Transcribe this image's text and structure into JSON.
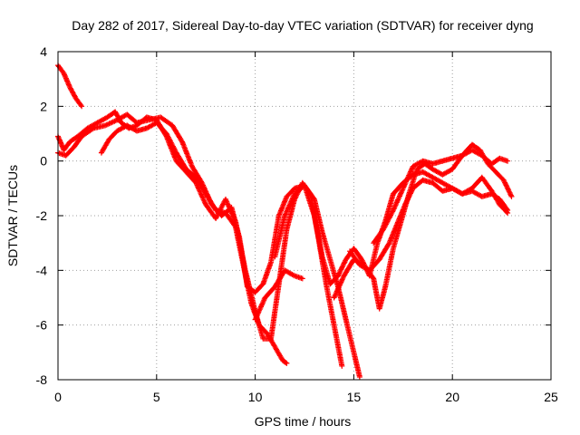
{
  "chart_data": {
    "type": "scatter",
    "title": "Day 282 of 2017, Sidereal Day-to-day VTEC variation (SDTVAR) for receiver dyng",
    "xlabel": "GPS time / hours",
    "ylabel": "SDTVAR / TECUs",
    "xlim": [
      0,
      25
    ],
    "ylim": [
      -8,
      4
    ],
    "xticks": [
      0,
      5,
      10,
      15,
      20,
      25
    ],
    "yticks": [
      -8,
      -6,
      -4,
      -2,
      0,
      2,
      4
    ],
    "grid": true,
    "marker": "plus",
    "color": "#ff0000",
    "series": [
      {
        "points": [
          [
            0.0,
            3.5
          ],
          [
            0.3,
            3.2
          ],
          [
            0.6,
            2.7
          ],
          [
            0.9,
            2.3
          ],
          [
            1.2,
            2.0
          ]
        ]
      },
      {
        "points": [
          [
            0.0,
            0.9
          ],
          [
            0.3,
            0.4
          ],
          [
            0.6,
            0.7
          ],
          [
            1.0,
            0.9
          ],
          [
            1.5,
            1.2
          ],
          [
            2.0,
            1.4
          ],
          [
            2.5,
            1.6
          ],
          [
            2.9,
            1.8
          ],
          [
            3.2,
            1.4
          ],
          [
            3.6,
            1.2
          ],
          [
            4.0,
            1.3
          ],
          [
            4.5,
            1.6
          ],
          [
            5.0,
            1.5
          ],
          [
            5.5,
            0.9
          ],
          [
            6.0,
            0.0
          ],
          [
            6.5,
            -0.4
          ],
          [
            7.0,
            -0.8
          ],
          [
            7.5,
            -1.6
          ],
          [
            8.0,
            -2.1
          ],
          [
            8.5,
            -1.4
          ],
          [
            9.0,
            -2.2
          ],
          [
            9.5,
            -4.0
          ],
          [
            10.0,
            -5.5
          ],
          [
            10.4,
            -6.5
          ],
          [
            10.8,
            -6.5
          ],
          [
            11.2,
            -4.5
          ],
          [
            11.6,
            -2.5
          ],
          [
            12.0,
            -1.4
          ],
          [
            12.4,
            -0.8
          ],
          [
            12.8,
            -1.2
          ],
          [
            13.2,
            -2.8
          ],
          [
            13.6,
            -4.5
          ],
          [
            14.0,
            -6.0
          ],
          [
            14.4,
            -7.5
          ]
        ]
      },
      {
        "points": [
          [
            0.0,
            0.3
          ],
          [
            0.4,
            0.2
          ],
          [
            0.8,
            0.5
          ],
          [
            1.2,
            0.9
          ],
          [
            1.8,
            1.2
          ],
          [
            2.4,
            1.3
          ],
          [
            3.0,
            1.5
          ],
          [
            3.5,
            1.7
          ],
          [
            4.0,
            1.4
          ],
          [
            4.6,
            1.5
          ],
          [
            5.2,
            1.6
          ],
          [
            5.8,
            1.3
          ],
          [
            6.3,
            0.7
          ],
          [
            6.8,
            -0.2
          ],
          [
            7.3,
            -0.8
          ],
          [
            7.8,
            -1.6
          ],
          [
            8.3,
            -2.0
          ],
          [
            8.8,
            -1.7
          ],
          [
            9.2,
            -2.8
          ],
          [
            9.6,
            -4.6
          ],
          [
            10.0,
            -4.8
          ],
          [
            10.4,
            -4.5
          ],
          [
            10.8,
            -3.7
          ],
          [
            11.2,
            -2.0
          ],
          [
            11.6,
            -1.3
          ],
          [
            12.0,
            -1.0
          ],
          [
            12.5,
            -0.9
          ],
          [
            13.0,
            -2.0
          ],
          [
            13.4,
            -3.5
          ],
          [
            13.8,
            -4.5
          ],
          [
            14.2,
            -4.2
          ],
          [
            14.6,
            -3.6
          ],
          [
            15.0,
            -3.2
          ],
          [
            15.4,
            -3.6
          ],
          [
            15.8,
            -4.2
          ],
          [
            16.2,
            -3.0
          ],
          [
            16.6,
            -2.2
          ],
          [
            17.0,
            -1.2
          ],
          [
            17.5,
            -0.8
          ],
          [
            18.0,
            -0.5
          ],
          [
            18.5,
            -0.4
          ],
          [
            19.0,
            -0.6
          ],
          [
            19.5,
            -0.8
          ],
          [
            20.0,
            -1.0
          ],
          [
            20.5,
            -1.2
          ],
          [
            21.0,
            -1.1
          ],
          [
            21.5,
            -1.3
          ],
          [
            22.0,
            -1.2
          ],
          [
            22.4,
            -1.4
          ],
          [
            22.8,
            -1.8
          ]
        ]
      },
      {
        "points": [
          [
            2.2,
            0.3
          ],
          [
            2.6,
            0.8
          ],
          [
            3.0,
            1.1
          ],
          [
            3.5,
            1.3
          ],
          [
            4.0,
            1.1
          ],
          [
            4.5,
            1.2
          ],
          [
            5.0,
            1.4
          ],
          [
            5.5,
            1.0
          ],
          [
            6.0,
            0.3
          ],
          [
            6.5,
            -0.3
          ],
          [
            7.0,
            -0.6
          ],
          [
            7.5,
            -1.2
          ],
          [
            8.0,
            -1.8
          ],
          [
            8.5,
            -1.9
          ],
          [
            9.0,
            -2.4
          ],
          [
            9.4,
            -3.8
          ],
          [
            9.8,
            -5.2
          ],
          [
            10.2,
            -6.0
          ],
          [
            10.6,
            -6.3
          ],
          [
            11.0,
            -6.8
          ],
          [
            11.4,
            -7.3
          ],
          [
            11.6,
            -7.4
          ]
        ]
      },
      {
        "points": [
          [
            10.0,
            -5.8
          ],
          [
            10.5,
            -5.0
          ],
          [
            11.0,
            -4.6
          ],
          [
            11.5,
            -4.0
          ],
          [
            12.0,
            -4.2
          ],
          [
            12.4,
            -4.3
          ]
        ]
      },
      {
        "points": [
          [
            11.0,
            -3.5
          ],
          [
            11.5,
            -2.0
          ],
          [
            12.0,
            -1.2
          ],
          [
            12.5,
            -0.9
          ],
          [
            13.0,
            -1.4
          ],
          [
            13.4,
            -2.6
          ],
          [
            13.8,
            -3.6
          ],
          [
            14.2,
            -4.6
          ],
          [
            14.6,
            -5.8
          ],
          [
            15.0,
            -7.0
          ],
          [
            15.3,
            -7.9
          ]
        ]
      },
      {
        "points": [
          [
            14.0,
            -5.0
          ],
          [
            14.5,
            -4.2
          ],
          [
            15.0,
            -3.6
          ],
          [
            15.5,
            -3.8
          ],
          [
            16.0,
            -4.3
          ],
          [
            16.3,
            -5.4
          ],
          [
            16.6,
            -4.6
          ],
          [
            17.0,
            -3.2
          ],
          [
            17.4,
            -2.2
          ],
          [
            17.8,
            -1.2
          ],
          [
            18.2,
            -0.3
          ],
          [
            18.6,
            -0.1
          ],
          [
            19.0,
            -0.3
          ],
          [
            19.5,
            -0.5
          ],
          [
            20.0,
            -0.3
          ],
          [
            20.5,
            0.2
          ],
          [
            21.0,
            0.6
          ],
          [
            21.4,
            0.4
          ],
          [
            21.8,
            -0.1
          ],
          [
            22.2,
            -0.4
          ],
          [
            22.6,
            -0.7
          ],
          [
            23.0,
            -1.3
          ]
        ]
      },
      {
        "points": [
          [
            14.8,
            -3.3
          ],
          [
            15.3,
            -3.8
          ],
          [
            15.8,
            -4.0
          ],
          [
            16.3,
            -3.6
          ],
          [
            16.8,
            -3.0
          ],
          [
            17.2,
            -2.3
          ],
          [
            17.6,
            -1.6
          ],
          [
            18.0,
            -1.0
          ],
          [
            18.5,
            -0.7
          ],
          [
            19.0,
            -0.8
          ],
          [
            19.5,
            -1.1
          ],
          [
            20.0,
            -1.0
          ],
          [
            20.5,
            -1.2
          ],
          [
            21.0,
            -1.0
          ],
          [
            21.5,
            -0.6
          ],
          [
            22.0,
            -1.1
          ],
          [
            22.4,
            -1.6
          ],
          [
            22.8,
            -1.9
          ]
        ]
      },
      {
        "points": [
          [
            16.0,
            -3.0
          ],
          [
            16.5,
            -2.5
          ],
          [
            17.0,
            -1.8
          ],
          [
            17.5,
            -1.0
          ],
          [
            18.0,
            -0.2
          ],
          [
            18.5,
            0.0
          ],
          [
            19.0,
            -0.1
          ],
          [
            19.5,
            0.0
          ],
          [
            20.0,
            0.1
          ],
          [
            20.5,
            0.2
          ],
          [
            21.0,
            0.4
          ],
          [
            21.5,
            0.2
          ],
          [
            22.0,
            -0.1
          ],
          [
            22.4,
            0.1
          ],
          [
            22.8,
            0.0
          ]
        ]
      }
    ]
  }
}
